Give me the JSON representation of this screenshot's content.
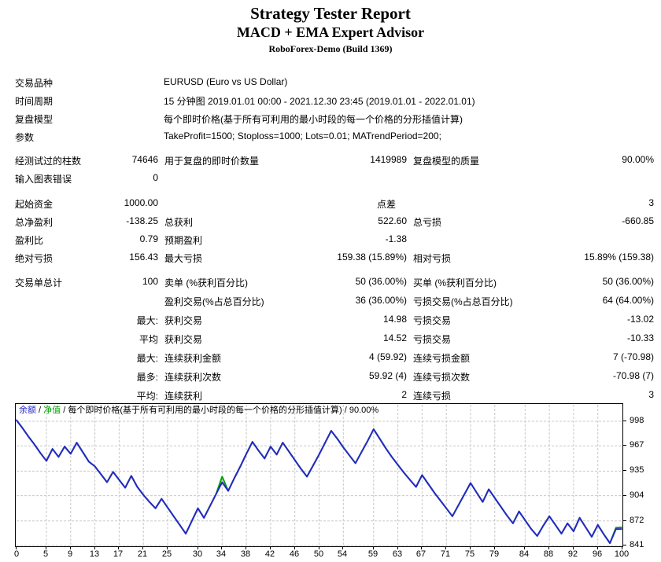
{
  "header": {
    "title": "Strategy Tester Report",
    "subtitle": "MACD + EMA Expert Advisor",
    "server": "RoboForex-Demo (Build 1369)"
  },
  "info_rows": [
    {
      "label": "交易品种",
      "value": "EURUSD (Euro vs US Dollar)"
    },
    {
      "label": "时间周期",
      "value": "15 分钟图 2019.01.01 00:00 - 2021.12.30 23:45 (2019.01.01 - 2022.01.01)"
    },
    {
      "label": "复盘模型",
      "value": "每个即时价格(基于所有可利用的最小时段的每一个价格的分形插值计算)"
    },
    {
      "label": "参数",
      "value": "TakeProfit=1500; Stoploss=1000; Lots=0.01; MATrendPeriod=200;"
    }
  ],
  "stat_sections": [
    {
      "rows": [
        {
          "c1": "经测试过的柱数",
          "c2": "74646",
          "c3": "用于复盘的即时价数量",
          "c4": "1419989",
          "c5": "复盘模型的质量",
          "c6": "90.00%"
        },
        {
          "c1": "输入图表错误",
          "c2": "0"
        }
      ]
    },
    {
      "rows": [
        {
          "c1": "起始资金",
          "c2": "1000.00",
          "c4": "点差",
          "c6": "3",
          "spread": true
        },
        {
          "c1": "总净盈利",
          "c2": "-138.25",
          "c3": "总获利",
          "c4": "522.60",
          "c5": "总亏损",
          "c6": "-660.85"
        },
        {
          "c1": "盈利比",
          "c2": "0.79",
          "c3": "预期盈利",
          "c4": "-1.38"
        },
        {
          "c1": "绝对亏损",
          "c2": "156.43",
          "c3": "最大亏损",
          "c4": "159.38 (15.89%)",
          "c5": "相对亏损",
          "c6": "15.89% (159.38)"
        }
      ]
    },
    {
      "rows": [
        {
          "c1": "交易单总计",
          "c2": "100",
          "c3": "卖单 (%获利百分比)",
          "c4": "50 (36.00%)",
          "c5": "买单 (%获利百分比)",
          "c6": "50 (36.00%)"
        },
        {
          "c3": "盈利交易(%占总百分比)",
          "c4": "36 (36.00%)",
          "c5": "亏损交易(%占总百分比)",
          "c6": "64 (64.00%)"
        },
        {
          "c2": "最大:",
          "c3": "获利交易",
          "c4": "14.98",
          "c5": "亏损交易",
          "c6": "-13.02"
        },
        {
          "c2": "平均",
          "c3": "获利交易",
          "c4": "14.52",
          "c5": "亏损交易",
          "c6": "-10.33"
        },
        {
          "c2": "最大:",
          "c3": "连续获利金额",
          "c4": "4 (59.92)",
          "c5": "连续亏损金额",
          "c6": "7 (-70.98)"
        },
        {
          "c2": "最多:",
          "c3": "连续获利次数",
          "c4": "59.92 (4)",
          "c5": "连续亏损次数",
          "c6": "-70.98 (7)"
        },
        {
          "c2": "平均:",
          "c3": "连续获利",
          "c4": "2",
          "c5": "连续亏损",
          "c6": "3"
        }
      ]
    }
  ],
  "chart_data": {
    "type": "line",
    "legend": {
      "balance": "余额",
      "equity": "净值",
      "model": "每个即时价格(基于所有可利用的最小时段的每一个价格的分形插值计算)",
      "quality": "90.00%",
      "sep": " / "
    },
    "xlabel": "",
    "ylabel": "",
    "xlim": [
      0,
      100
    ],
    "ylim": [
      840,
      1020
    ],
    "grid": true,
    "x_ticks": [
      0,
      5,
      9,
      13,
      17,
      21,
      25,
      30,
      34,
      38,
      42,
      46,
      50,
      54,
      59,
      63,
      67,
      71,
      75,
      79,
      84,
      88,
      92,
      96,
      100
    ],
    "y_ticks": [
      998,
      967,
      935,
      904,
      872,
      841
    ],
    "colors": {
      "balance": "#2828c8",
      "equity": "#00a000",
      "grid": "#c8c8c8",
      "frame": "#000000"
    },
    "series": [
      {
        "name": "净值",
        "color": "#00a000",
        "values": [
          1000,
          990,
          979,
          969,
          958,
          948,
          963,
          953,
          966,
          957,
          971,
          959,
          947,
          941,
          931,
          921,
          934,
          924,
          914,
          929,
          915,
          905,
          896,
          888,
          900,
          889,
          878,
          867,
          856,
          872,
          888,
          876,
          891,
          906,
          928,
          910,
          926,
          941,
          957,
          972,
          961,
          951,
          966,
          956,
          971,
          960,
          949,
          938,
          928,
          942,
          956,
          971,
          986,
          976,
          965,
          955,
          945,
          959,
          973,
          988,
          976,
          964,
          953,
          943,
          933,
          924,
          915,
          930,
          919,
          908,
          898,
          888,
          878,
          892,
          906,
          920,
          908,
          896,
          912,
          901,
          890,
          879,
          869,
          884,
          873,
          862,
          853,
          866,
          878,
          867,
          856,
          869,
          859,
          876,
          864,
          852,
          867,
          855,
          844,
          863.5,
          864
        ]
      },
      {
        "name": "余额",
        "color": "#2828c8",
        "values": [
          1000,
          990,
          979,
          969,
          958,
          948,
          963,
          953,
          966,
          957,
          971,
          959,
          947,
          941,
          931,
          921,
          934,
          924,
          914,
          929,
          915,
          905,
          896,
          888,
          900,
          889,
          878,
          867,
          856,
          872,
          888,
          876,
          891,
          906,
          921,
          910,
          926,
          941,
          957,
          972,
          961,
          951,
          966,
          956,
          971,
          960,
          949,
          938,
          928,
          942,
          956,
          971,
          986,
          976,
          965,
          955,
          945,
          959,
          973,
          988,
          976,
          964,
          953,
          943,
          933,
          924,
          915,
          930,
          919,
          908,
          898,
          888,
          878,
          892,
          906,
          920,
          908,
          896,
          912,
          901,
          890,
          879,
          869,
          884,
          873,
          862,
          853,
          866,
          878,
          867,
          856,
          869,
          859,
          876,
          864,
          852,
          867,
          855,
          844,
          861.75,
          861.75
        ]
      }
    ]
  }
}
